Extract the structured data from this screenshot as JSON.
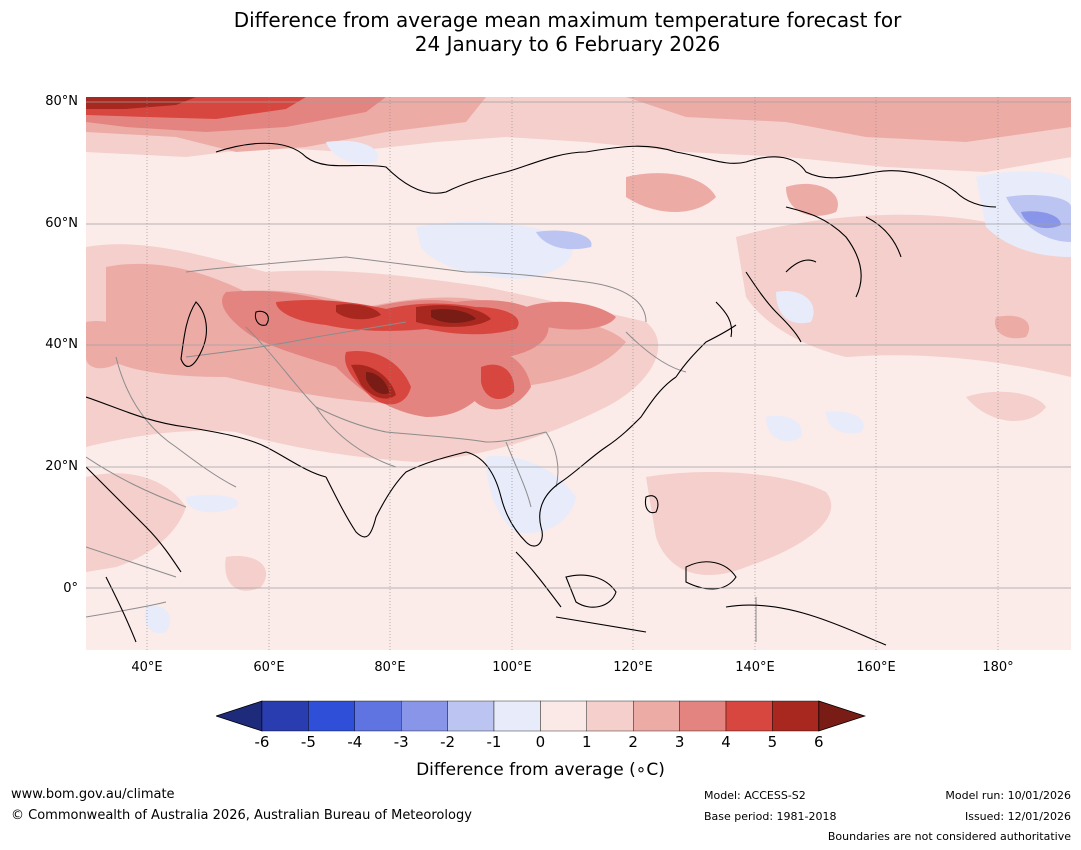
{
  "title": {
    "line1": "Difference from average mean maximum temperature forecast for",
    "line2": "24 January to 6 February 2026"
  },
  "map": {
    "lat_labels": [
      "80°N",
      "60°N",
      "40°N",
      "20°N",
      "0°"
    ],
    "lon_labels": [
      "40°E",
      "60°E",
      "80°E",
      "100°E",
      "120°E",
      "140°E",
      "160°E",
      "180°"
    ],
    "colors": {
      "ocean_base": "#fbebe9",
      "land_base": "#fbe9e7",
      "grid": "#888888",
      "border": "#8c8c8c",
      "coast": "#000000"
    }
  },
  "colorbar": {
    "ticks": [
      "-6",
      "-5",
      "-4",
      "-3",
      "-2",
      "-1",
      "0",
      "1",
      "2",
      "3",
      "4",
      "5",
      "6"
    ],
    "colors": [
      "#1e2a7a",
      "#2a3db0",
      "#2f4fd9",
      "#5f74e0",
      "#8995e8",
      "#bcc5f2",
      "#e7ebfa",
      "#fbe9e7",
      "#f4cfcb",
      "#edaba6",
      "#e48480",
      "#d8473f",
      "#a8281f",
      "#7a1c16"
    ],
    "label": "Difference from average (∘C)"
  },
  "footer": {
    "website": "www.bom.gov.au/climate",
    "copyright": "© Commonwealth of Australia 2026, Australian Bureau of Meteorology",
    "model": "Model: ACCESS-S2",
    "base_period": "Base period: 1981-2018",
    "model_run": "Model run: 10/01/2026",
    "issued": "Issued: 12/01/2026",
    "disclaimer": "Boundaries are not considered authoritative"
  }
}
